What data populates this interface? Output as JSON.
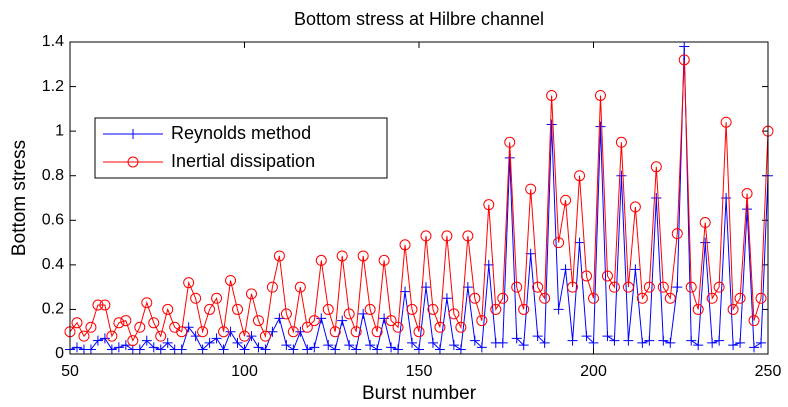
{
  "chart_data": {
    "type": "line",
    "title": "Bottom stress at Hilbre channel",
    "x_label": "Burst number",
    "y_label": "Bottom stress",
    "x": [
      50,
      52,
      54,
      56,
      58,
      60,
      62,
      64,
      66,
      68,
      70,
      72,
      74,
      76,
      78,
      80,
      82,
      84,
      86,
      88,
      90,
      92,
      94,
      96,
      98,
      100,
      102,
      104,
      106,
      108,
      110,
      112,
      114,
      116,
      118,
      120,
      122,
      124,
      126,
      128,
      130,
      132,
      134,
      136,
      138,
      140,
      142,
      144,
      146,
      148,
      150,
      152,
      154,
      156,
      158,
      160,
      162,
      164,
      166,
      168,
      170,
      172,
      174,
      176,
      178,
      180,
      182,
      184,
      186,
      188,
      190,
      192,
      194,
      196,
      198,
      200,
      202,
      204,
      206,
      208,
      210,
      212,
      214,
      216,
      218,
      220,
      222,
      224,
      226,
      228,
      230,
      232,
      234,
      236,
      238,
      240,
      242,
      244,
      246,
      248,
      250
    ],
    "series": [
      {
        "name": "Reynolds method",
        "color": "#0000ff",
        "marker": "plus",
        "values": [
          0.02,
          0.03,
          0.02,
          0.02,
          0.06,
          0.07,
          0.02,
          0.03,
          0.04,
          0.02,
          0.02,
          0.06,
          0.03,
          0.02,
          0.05,
          0.02,
          0.02,
          0.12,
          0.08,
          0.02,
          0.05,
          0.07,
          0.02,
          0.1,
          0.05,
          0.02,
          0.08,
          0.03,
          0.02,
          0.1,
          0.16,
          0.04,
          0.02,
          0.1,
          0.02,
          0.03,
          0.16,
          0.04,
          0.02,
          0.15,
          0.04,
          0.02,
          0.18,
          0.04,
          0.02,
          0.16,
          0.03,
          0.02,
          0.28,
          0.05,
          0.02,
          0.3,
          0.05,
          0.02,
          0.25,
          0.04,
          0.02,
          0.3,
          0.06,
          0.03,
          0.4,
          0.05,
          0.05,
          0.88,
          0.07,
          0.04,
          0.45,
          0.08,
          0.05,
          1.03,
          0.2,
          0.38,
          0.06,
          0.5,
          0.08,
          0.05,
          1.02,
          0.08,
          0.06,
          0.8,
          0.06,
          0.38,
          0.05,
          0.06,
          0.7,
          0.06,
          0.05,
          0.3,
          1.38,
          0.06,
          0.04,
          0.5,
          0.05,
          0.06,
          0.7,
          0.04,
          0.05,
          0.65,
          0.03,
          0.05,
          0.8
        ]
      },
      {
        "name": "Inertial dissipation",
        "color": "#ff0000",
        "marker": "circle",
        "values": [
          0.1,
          0.14,
          0.08,
          0.12,
          0.22,
          0.22,
          0.08,
          0.14,
          0.15,
          0.06,
          0.12,
          0.23,
          0.14,
          0.08,
          0.2,
          0.12,
          0.1,
          0.32,
          0.25,
          0.1,
          0.2,
          0.25,
          0.1,
          0.33,
          0.2,
          0.08,
          0.27,
          0.15,
          0.08,
          0.3,
          0.44,
          0.18,
          0.1,
          0.3,
          0.12,
          0.15,
          0.42,
          0.2,
          0.1,
          0.44,
          0.18,
          0.1,
          0.44,
          0.2,
          0.1,
          0.42,
          0.15,
          0.12,
          0.49,
          0.2,
          0.1,
          0.53,
          0.2,
          0.12,
          0.53,
          0.18,
          0.12,
          0.53,
          0.25,
          0.15,
          0.67,
          0.2,
          0.25,
          0.95,
          0.3,
          0.2,
          0.74,
          0.3,
          0.25,
          1.16,
          0.5,
          0.69,
          0.3,
          0.8,
          0.35,
          0.25,
          1.16,
          0.35,
          0.3,
          0.95,
          0.3,
          0.66,
          0.25,
          0.3,
          0.84,
          0.3,
          0.25,
          0.54,
          1.32,
          0.3,
          0.2,
          0.59,
          0.25,
          0.3,
          1.04,
          0.2,
          0.25,
          0.72,
          0.15,
          0.25,
          1.0
        ]
      }
    ],
    "xlim": [
      50,
      250
    ],
    "xticks": [
      50,
      100,
      150,
      200,
      250
    ],
    "ylim": [
      0,
      1.4
    ],
    "yticks": [
      0,
      0.2,
      0.4,
      0.6,
      0.8,
      1,
      1.2,
      1.4
    ],
    "grid": false,
    "legend": "upper left"
  }
}
